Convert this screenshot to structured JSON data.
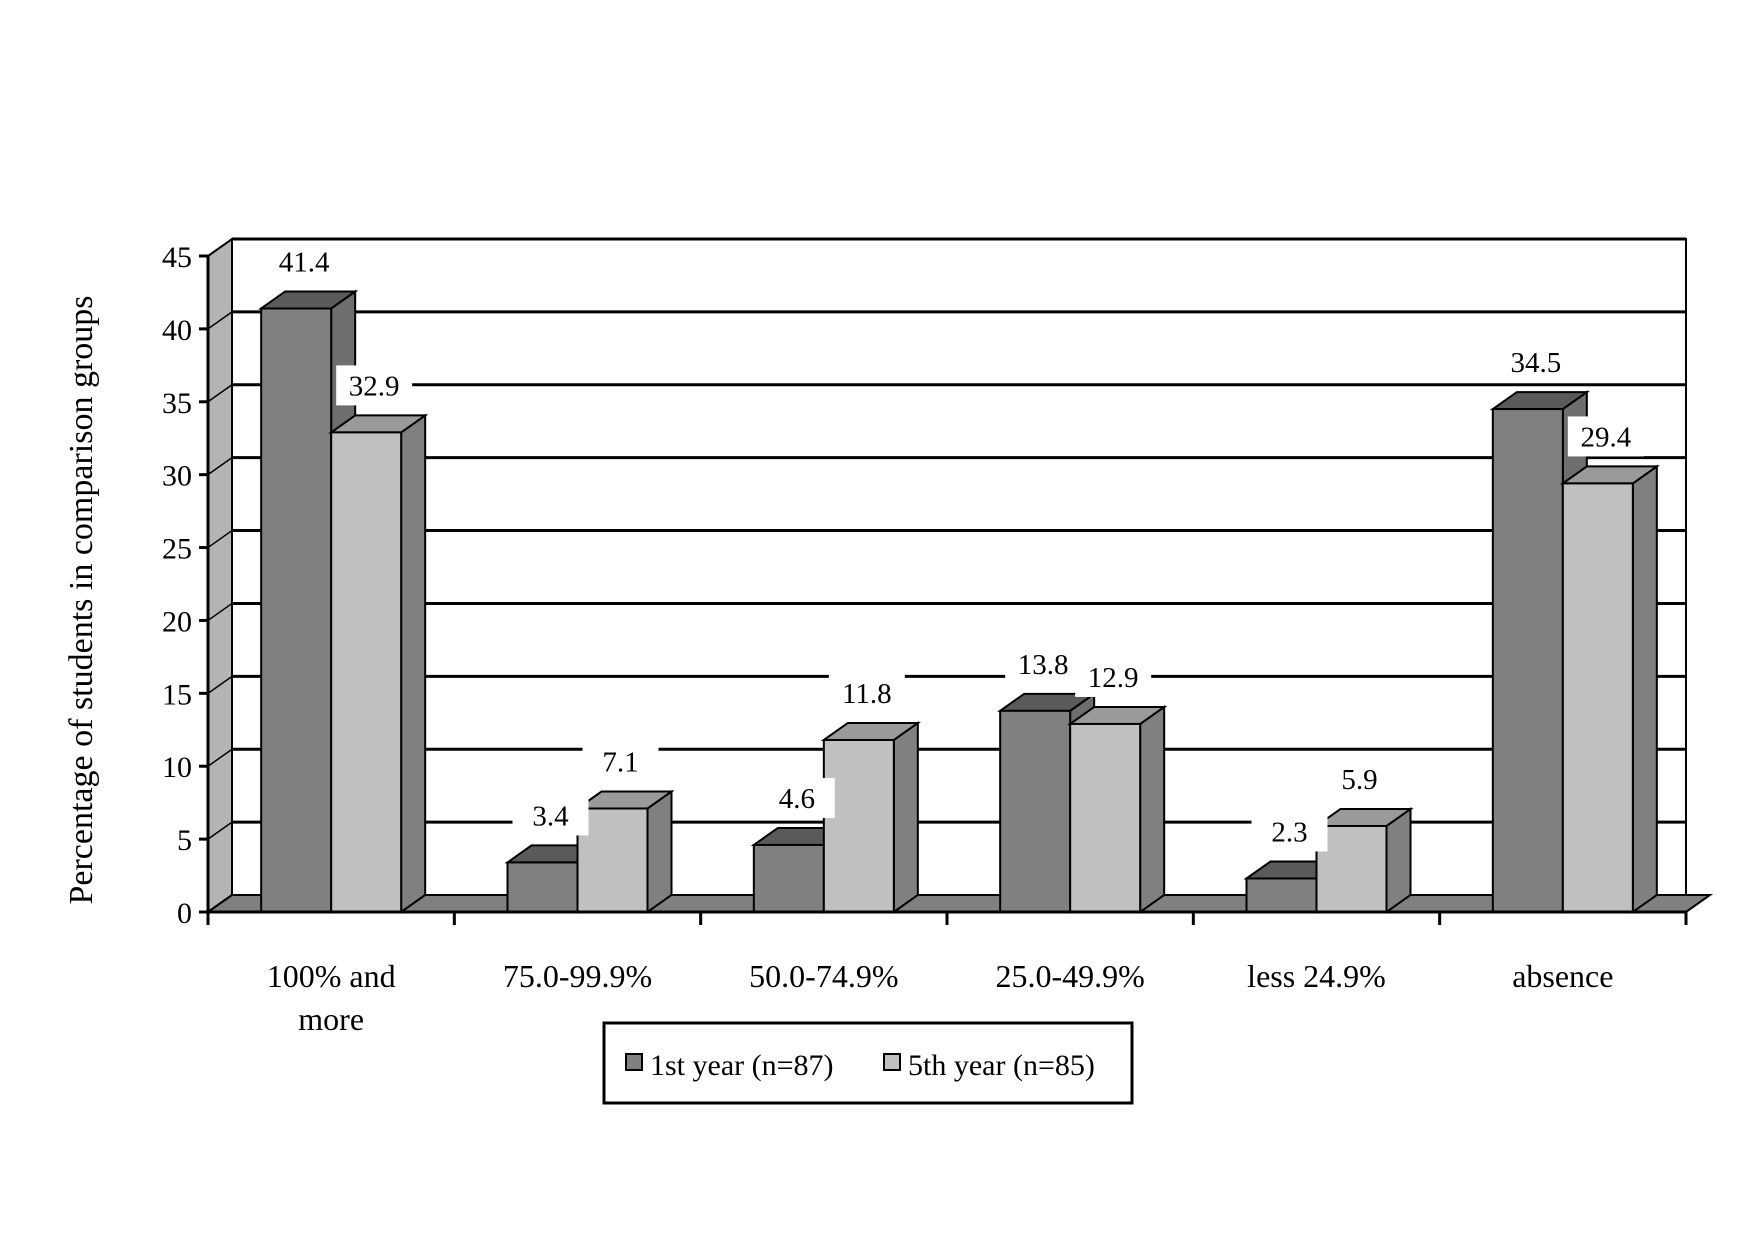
{
  "chart_data": {
    "type": "bar",
    "title": "",
    "xlabel": "",
    "ylabel": "Percentage of students in comparison groups",
    "ylim": [
      0,
      45
    ],
    "yticks": [
      0,
      5,
      10,
      15,
      20,
      25,
      30,
      35,
      40,
      45
    ],
    "grid": true,
    "legend_position": "bottom",
    "categories": [
      [
        "100% and",
        "more"
      ],
      [
        "75.0-99.9%"
      ],
      [
        "50.0-74.9%"
      ],
      [
        "25.0-49.9%"
      ],
      [
        "less  24.9%"
      ],
      [
        "absence"
      ]
    ],
    "series": [
      {
        "name": "1st year (n=87)",
        "values": [
          41.4,
          3.4,
          4.6,
          13.8,
          2.3,
          34.5
        ],
        "labels": [
          "41.4",
          "3.4",
          "4.6",
          "13.8",
          "2.3",
          "34.5"
        ],
        "color": "#808080"
      },
      {
        "name": "5th year (n=85)",
        "values": [
          32.9,
          7.1,
          11.8,
          12.9,
          5.9,
          29.4
        ],
        "labels": [
          "32.9",
          "7.1",
          "11.8",
          "12.9",
          "5.9",
          "29.4"
        ],
        "color": "#c0c0c0"
      }
    ]
  }
}
